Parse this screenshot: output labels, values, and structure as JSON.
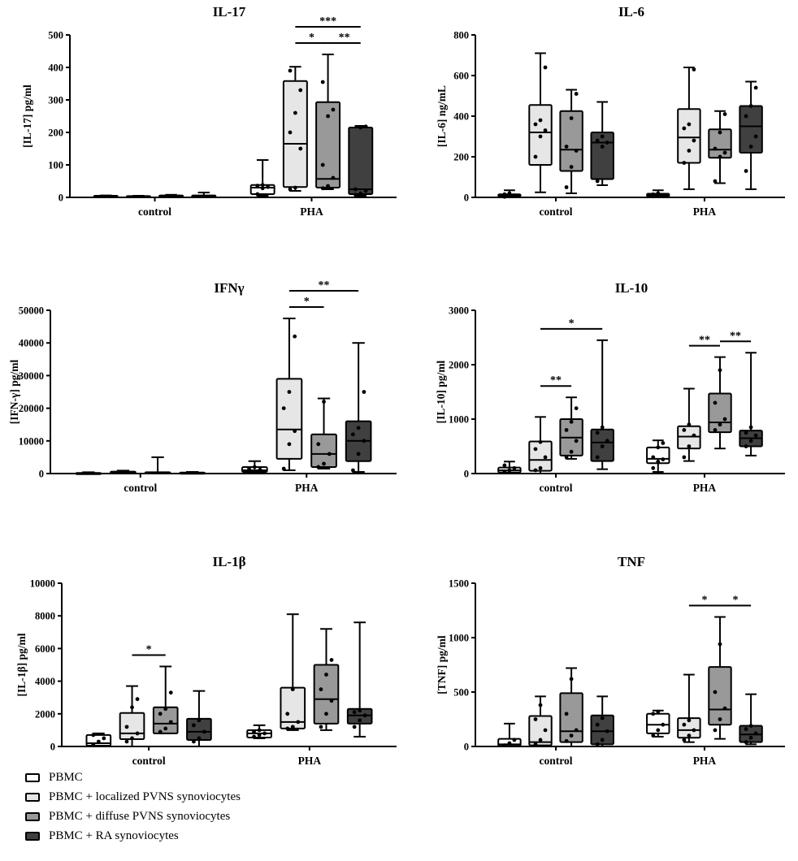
{
  "chart_data": [
    {
      "type": "box",
      "title": "IL-17",
      "ylabel": "[IL-17] pg/ml",
      "ylim": [
        0,
        500
      ],
      "yticks": [
        "0",
        "100",
        "200",
        "300",
        "400",
        "500"
      ],
      "groups": [
        "control",
        "PHA"
      ],
      "series": [
        {
          "name": "PBMC",
          "stats": [
            [
              2,
              3,
              4,
              5,
              6
            ],
            [
              5,
              10,
              30,
              38,
              115
            ]
          ],
          "points": [
            [],
            [
              10,
              28,
              32,
              36,
              38
            ]
          ]
        },
        {
          "name": "PBMC + localized PVNS synoviocytes",
          "stats": [
            [
              1,
              2,
              3,
              4,
              5
            ],
            [
              20,
              32,
              165,
              358,
              402
            ]
          ],
          "points": [
            [],
            [
              25,
              30,
              150,
              200,
              260,
              330,
              390
            ]
          ]
        },
        {
          "name": "PBMC + diffuse PVNS synoviocytes",
          "stats": [
            [
              1,
              3,
              4,
              6,
              8
            ],
            [
              25,
              30,
              57,
              293,
              440
            ]
          ],
          "points": [
            [],
            [
              28,
              35,
              60,
              100,
              250,
              270,
              355
            ]
          ]
        },
        {
          "name": "PBMC + RA synoviocytes",
          "stats": [
            [
              1,
              2,
              3,
              6,
              15
            ],
            [
              5,
              10,
              25,
              215,
              220
            ]
          ],
          "points": [
            [],
            [
              8,
              12,
              20,
              25,
              215,
              218
            ]
          ]
        }
      ],
      "brackets": [
        {
          "from": [
            1,
            1
          ],
          "to": [
            1,
            2
          ],
          "label": "*"
        },
        {
          "from": [
            1,
            2
          ],
          "to": [
            1,
            3
          ],
          "label": "**"
        },
        {
          "from": [
            1,
            1
          ],
          "to": [
            1,
            3
          ],
          "label": "***"
        }
      ]
    },
    {
      "type": "box",
      "title": "IL-6",
      "ylabel": "[IL-6] ng/mL",
      "ylim": [
        0,
        800
      ],
      "yticks": [
        "0",
        "200",
        "400",
        "600",
        "800"
      ],
      "groups": [
        "control",
        "PHA"
      ],
      "series": [
        {
          "name": "PBMC",
          "stats": [
            [
              0,
              5,
              10,
              15,
              35
            ],
            [
              0,
              5,
              12,
              18,
              35
            ]
          ],
          "points": [
            [
              3,
              6,
              10,
              15,
              20
            ],
            [
              5,
              8,
              12,
              15,
              20
            ]
          ]
        },
        {
          "name": "PBMC + localized PVNS synoviocytes",
          "stats": [
            [
              25,
              160,
              320,
              455,
              710
            ],
            [
              40,
              170,
              295,
              435,
              640
            ]
          ],
          "points": [
            [
              200,
              300,
              330,
              360,
              380,
              640
            ],
            [
              170,
              230,
              280,
              340,
              360,
              630
            ]
          ]
        },
        {
          "name": "PBMC + diffuse PVNS synoviocytes",
          "stats": [
            [
              20,
              130,
              235,
              425,
              530
            ],
            [
              70,
              195,
              235,
              335,
              425
            ]
          ],
          "points": [
            [
              50,
              150,
              230,
              250,
              390,
              510
            ],
            [
              80,
              200,
              220,
              240,
              320,
              410
            ]
          ]
        },
        {
          "name": "PBMC + RA synoviocytes",
          "stats": [
            [
              60,
              90,
              270,
              320,
              470
            ],
            [
              40,
              220,
              350,
              450,
              570
            ]
          ],
          "points": [
            [
              80,
              250,
              270,
              280,
              300
            ],
            [
              130,
              250,
              300,
              400,
              450,
              540
            ]
          ]
        }
      ],
      "brackets": []
    },
    {
      "type": "box",
      "title": "IFNγ",
      "ylabel": "[IFN-γ] pg/ml",
      "ylim": [
        0,
        50000
      ],
      "yticks": [
        "0",
        "10000",
        "20000",
        "30000",
        "40000",
        "50000"
      ],
      "groups": [
        "control",
        "PHA"
      ],
      "series": [
        {
          "name": "PBMC",
          "stats": [
            [
              0,
              50,
              100,
              200,
              400
            ],
            [
              200,
              500,
              1000,
              2000,
              3800
            ]
          ],
          "points": [
            [],
            [
              500,
              800,
              1200,
              1500,
              2000
            ]
          ]
        },
        {
          "name": "PBMC + localized PVNS synoviocytes",
          "stats": [
            [
              0,
              100,
              300,
              600,
              900
            ],
            [
              1000,
              4500,
              13500,
              29000,
              47500
            ]
          ],
          "points": [
            [],
            [
              1500,
              9000,
              13000,
              20000,
              25000,
              42000
            ]
          ]
        },
        {
          "name": "PBMC + diffuse PVNS synoviocytes",
          "stats": [
            [
              0,
              50,
              150,
              400,
              5000
            ],
            [
              1500,
              2000,
              6000,
              12000,
              23000
            ]
          ],
          "points": [
            [],
            [
              2000,
              3000,
              6000,
              9000,
              22000
            ]
          ]
        },
        {
          "name": "PBMC + RA synoviocytes",
          "stats": [
            [
              0,
              50,
              100,
              300,
              500
            ],
            [
              500,
              3800,
              10000,
              16000,
              40000
            ]
          ],
          "points": [
            [],
            [
              1000,
              6000,
              10000,
              12000,
              14000,
              25000
            ]
          ]
        }
      ],
      "brackets": [
        {
          "from": [
            1,
            1
          ],
          "to": [
            1,
            2
          ],
          "label": "*"
        },
        {
          "from": [
            1,
            1
          ],
          "to": [
            1,
            3
          ],
          "label": "**"
        }
      ]
    },
    {
      "type": "box",
      "title": "IL-10",
      "ylabel": "[IL-10] pg/ml",
      "ylim": [
        0,
        3000
      ],
      "yticks": [
        "0",
        "1000",
        "2000",
        "3000"
      ],
      "groups": [
        "control",
        "PHA"
      ],
      "series": [
        {
          "name": "PBMC",
          "stats": [
            [
              0,
              20,
              60,
              110,
              220
            ],
            [
              30,
              190,
              270,
              480,
              610
            ]
          ],
          "points": [
            [
              30,
              60,
              100,
              150
            ],
            [
              100,
              220,
              260,
              300,
              480,
              560
            ]
          ]
        },
        {
          "name": "PBMC + localized PVNS synoviocytes",
          "stats": [
            [
              0,
              50,
              250,
              590,
              1040
            ],
            [
              230,
              460,
              680,
              870,
              1560
            ]
          ],
          "points": [
            [
              60,
              100,
              300,
              450,
              580
            ],
            [
              300,
              500,
              700,
              800,
              900
            ]
          ]
        },
        {
          "name": "PBMC + diffuse PVNS synoviocytes",
          "stats": [
            [
              270,
              330,
              660,
              1000,
              1400
            ],
            [
              460,
              760,
              940,
              1470,
              2140
            ]
          ],
          "points": [
            [
              300,
              400,
              600,
              800,
              950,
              1200
            ],
            [
              800,
              900,
              1000,
              1300,
              1900
            ]
          ]
        },
        {
          "name": "PBMC + RA synoviocytes",
          "stats": [
            [
              80,
              230,
              570,
              810,
              2450
            ],
            [
              330,
              500,
              650,
              790,
              2220
            ]
          ],
          "points": [
            [
              300,
              500,
              600,
              750,
              850
            ],
            [
              500,
              600,
              700,
              750,
              850
            ]
          ]
        }
      ],
      "brackets": [
        {
          "from": [
            0,
            1
          ],
          "to": [
            0,
            3
          ],
          "label": "*"
        },
        {
          "from": [
            0,
            1
          ],
          "to": [
            0,
            2
          ],
          "label": "**"
        },
        {
          "from": [
            1,
            1
          ],
          "to": [
            1,
            2
          ],
          "label": "**"
        },
        {
          "from": [
            1,
            2
          ],
          "to": [
            1,
            3
          ],
          "label": "**"
        }
      ]
    },
    {
      "type": "box",
      "title": "IL-1β",
      "ylabel": "[IL-1β] pg/ml",
      "ylim": [
        0,
        10000
      ],
      "yticks": [
        "0",
        "2000",
        "4000",
        "6000",
        "8000",
        "10000"
      ],
      "groups": [
        "control",
        "PHA"
      ],
      "series": [
        {
          "name": "PBMC",
          "stats": [
            [
              0,
              50,
              200,
              700,
              800
            ],
            [
              500,
              550,
              800,
              1000,
              1300
            ]
          ],
          "points": [
            [
              100,
              300,
              500,
              700
            ],
            [
              600,
              700,
              800,
              900,
              1000
            ]
          ]
        },
        {
          "name": "PBMC + localized PVNS synoviocytes",
          "stats": [
            [
              0,
              450,
              800,
              2050,
              3700
            ],
            [
              1000,
              1100,
              1500,
              3600,
              8100
            ]
          ],
          "points": [
            [
              300,
              500,
              800,
              1200,
              2400,
              2900
            ],
            [
              1100,
              1200,
              1500,
              2000,
              3500
            ]
          ]
        },
        {
          "name": "PBMC + diffuse PVNS synoviocytes",
          "stats": [
            [
              800,
              800,
              1400,
              2400,
              4900
            ],
            [
              1000,
              1400,
              2900,
              5000,
              7200
            ]
          ],
          "points": [
            [
              900,
              1100,
              1500,
              2000,
              2300,
              3300
            ],
            [
              1200,
              2000,
              2800,
              3500,
              4400,
              5300
            ]
          ]
        },
        {
          "name": "PBMC + RA synoviocytes",
          "stats": [
            [
              0,
              400,
              900,
              1700,
              3400
            ],
            [
              600,
              1400,
              1900,
              2300,
              7600
            ]
          ],
          "points": [
            [
              300,
              500,
              900,
              1300,
              1600
            ],
            [
              1200,
              1600,
              1900,
              2100,
              2200
            ]
          ]
        }
      ],
      "brackets": [
        {
          "from": [
            0,
            1
          ],
          "to": [
            0,
            2
          ],
          "label": "*"
        }
      ]
    },
    {
      "type": "box",
      "title": "TNF",
      "ylabel": "[TNF] pg/ml",
      "ylim": [
        0,
        1500
      ],
      "yticks": [
        "0",
        "500",
        "1000",
        "1500"
      ],
      "groups": [
        "control",
        "PHA"
      ],
      "series": [
        {
          "name": "PBMC",
          "stats": [
            [
              0,
              5,
              20,
              70,
              210
            ],
            [
              90,
              120,
              200,
              300,
              330
            ]
          ],
          "points": [
            [
              10,
              30,
              60
            ],
            [
              100,
              150,
              200,
              300,
              320
            ]
          ]
        },
        {
          "name": "PBMC + localized PVNS synoviocytes",
          "stats": [
            [
              0,
              10,
              40,
              280,
              460
            ],
            [
              40,
              80,
              150,
              260,
              660
            ]
          ],
          "points": [
            [
              20,
              60,
              150,
              250,
              380
            ],
            [
              60,
              100,
              150,
              200,
              240
            ]
          ]
        },
        {
          "name": "PBMC + diffuse PVNS synoviocytes",
          "stats": [
            [
              0,
              40,
              140,
              490,
              720
            ],
            [
              70,
              200,
              340,
              730,
              1190
            ]
          ],
          "points": [
            [
              50,
              100,
              150,
              300,
              620
            ],
            [
              150,
              250,
              350,
              500,
              940
            ]
          ]
        },
        {
          "name": "PBMC + RA synoviocytes",
          "stats": [
            [
              0,
              20,
              140,
              285,
              460
            ],
            [
              20,
              40,
              110,
              190,
              480
            ]
          ],
          "points": [
            [
              20,
              60,
              140,
              200,
              260
            ],
            [
              40,
              80,
              120,
              160,
              190
            ]
          ]
        }
      ],
      "brackets": [
        {
          "from": [
            1,
            1
          ],
          "to": [
            1,
            2
          ],
          "label": "*"
        },
        {
          "from": [
            1,
            2
          ],
          "to": [
            1,
            3
          ],
          "label": "*"
        }
      ]
    }
  ],
  "legend": {
    "items": [
      {
        "label": "PBMC",
        "color": "#ffffff"
      },
      {
        "label": "PBMC + localized PVNS synoviocytes",
        "color": "#e6e6e6"
      },
      {
        "label": "PBMC + diffuse PVNS synoviocytes",
        "color": "#999999"
      },
      {
        "label": "PBMC + RA synoviocytes",
        "color": "#404040"
      }
    ]
  }
}
